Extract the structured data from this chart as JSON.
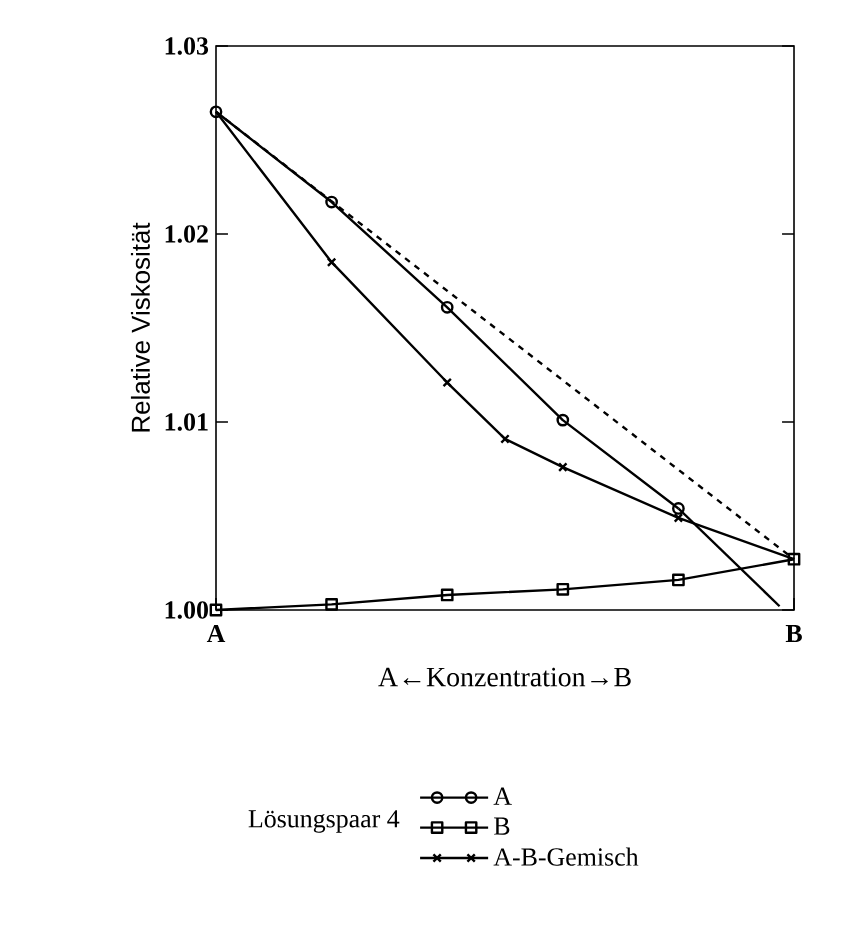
{
  "chart_data": {
    "type": "line",
    "xlabel": "A←Konzentration→B",
    "ylabel": "Relative Viskosität",
    "legend_title": "Lösungspaar 4",
    "legend": "bottom",
    "grid": false,
    "categories": [
      "A",
      null,
      null,
      null,
      null,
      null,
      null,
      null,
      null,
      null,
      null,
      null,
      null,
      null,
      null,
      null,
      null,
      null,
      null,
      null,
      null,
      null,
      null,
      null,
      null,
      null,
      null,
      null,
      null,
      null,
      null,
      null,
      null,
      null,
      null,
      null,
      null,
      null,
      null,
      null,
      "B"
    ],
    "ylim": [
      1.0,
      1.03
    ],
    "yticks": [
      {
        "value": 1.0,
        "label": "1.00"
      },
      {
        "value": 1.01,
        "label": "1.01"
      },
      {
        "value": 1.02,
        "label": "1.02"
      },
      {
        "value": 1.03,
        "label": "1.03"
      }
    ],
    "series": [
      {
        "name": "A",
        "color": "#000000",
        "marker": "circle",
        "values": [
          1.0265,
          null,
          null,
          null,
          null,
          null,
          null,
          null,
          1.0217,
          null,
          null,
          null,
          null,
          null,
          null,
          null,
          1.0161,
          null,
          null,
          null,
          null,
          null,
          null,
          null,
          1.0101,
          null,
          null,
          null,
          null,
          null,
          null,
          null,
          1.0054,
          null,
          null,
          null,
          null,
          null,
          null,
          null,
          null
        ]
      },
      {
        "color": "#000000",
        "values": [
          null,
          null,
          null,
          null,
          null,
          null,
          null,
          null,
          null,
          null,
          null,
          null,
          null,
          null,
          null,
          null,
          null,
          null,
          null,
          null,
          null,
          null,
          null,
          null,
          null,
          null,
          null,
          null,
          null,
          null,
          null,
          null,
          1.0054,
          null,
          null,
          null,
          null,
          null,
          null,
          1.0002,
          null
        ]
      },
      {
        "name": "B",
        "color": "#000000",
        "marker": "square",
        "values": [
          1.0,
          null,
          null,
          null,
          null,
          null,
          null,
          null,
          1.0003,
          null,
          null,
          null,
          null,
          null,
          null,
          null,
          1.0008,
          null,
          null,
          null,
          null,
          null,
          null,
          null,
          1.0011,
          null,
          null,
          null,
          null,
          null,
          null,
          null,
          1.0016,
          null,
          null,
          null,
          null,
          null,
          null,
          null,
          1.0027
        ]
      },
      {
        "name": "A-B-Gemisch",
        "color": "#000000",
        "marker": "cross",
        "values": [
          1.0265,
          null,
          null,
          null,
          null,
          null,
          null,
          null,
          1.0185,
          null,
          null,
          null,
          null,
          null,
          null,
          null,
          1.0121,
          null,
          null,
          null,
          1.0091,
          null,
          null,
          null,
          1.0076,
          null,
          null,
          null,
          null,
          null,
          null,
          null,
          1.0049,
          null,
          null,
          null,
          null,
          null,
          null,
          null,
          1.0027
        ]
      },
      {
        "color": "#000000",
        "line_style": "dashed",
        "values": [
          1.0265,
          null,
          null,
          null,
          null,
          null,
          null,
          null,
          null,
          null,
          null,
          null,
          null,
          null,
          null,
          null,
          null,
          null,
          null,
          null,
          null,
          null,
          null,
          null,
          null,
          null,
          null,
          null,
          null,
          null,
          null,
          null,
          null,
          null,
          null,
          null,
          null,
          null,
          null,
          null,
          1.0027
        ]
      }
    ]
  }
}
